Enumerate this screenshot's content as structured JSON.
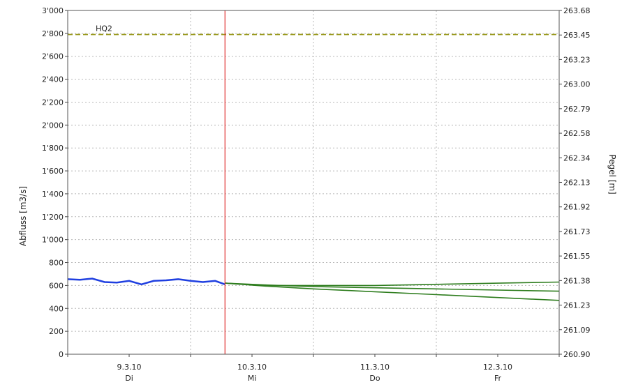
{
  "chart_data": {
    "type": "line",
    "ylabel_left": "Abfluss [m3/s]",
    "ylabel_right": "Pegel [m]",
    "ylim_left": [
      0,
      3000
    ],
    "yticks_left": [
      "3'000",
      "2'800",
      "2'600",
      "2'400",
      "2'200",
      "2'000",
      "1'800",
      "1'600",
      "1'400",
      "1'200",
      "1'000",
      "800",
      "600",
      "400",
      "200",
      "0"
    ],
    "yticks_right": [
      "263.68",
      "263.45",
      "263.23",
      "263.00",
      "262.79",
      "262.58",
      "262.34",
      "262.13",
      "261.92",
      "261.73",
      "261.55",
      "261.38",
      "261.23",
      "261.09",
      "260.90"
    ],
    "xlim_days": [
      0,
      4
    ],
    "x_date_labels": [
      {
        "date": "9.3.10",
        "day": "Di",
        "x": 0.5
      },
      {
        "date": "10.3.10",
        "day": "Mi",
        "x": 1.5
      },
      {
        "date": "11.3.10",
        "day": "Do",
        "x": 2.5
      },
      {
        "date": "12.3.10",
        "day": "Fr",
        "x": 3.5
      }
    ],
    "now_line_x": 1.28,
    "hq": {
      "label": "HQ2",
      "value": 2790,
      "color": "#9a9a1e"
    },
    "grid": true,
    "series": [
      {
        "name": "",
        "color": "#1f3fe0",
        "points": [
          [
            0,
            655
          ],
          [
            0.1,
            650
          ],
          [
            0.2,
            660
          ],
          [
            0.3,
            630
          ],
          [
            0.4,
            625
          ],
          [
            0.5,
            640
          ],
          [
            0.6,
            610
          ],
          [
            0.7,
            640
          ],
          [
            0.8,
            645
          ],
          [
            0.9,
            655
          ],
          [
            1.0,
            640
          ],
          [
            1.1,
            630
          ],
          [
            1.2,
            640
          ],
          [
            1.28,
            610
          ]
        ]
      },
      {
        "name": "",
        "color": "#2e7d1e",
        "points": [
          [
            1.28,
            620
          ],
          [
            1.6,
            600
          ],
          [
            2.0,
            600
          ],
          [
            2.5,
            600
          ],
          [
            3.0,
            610
          ],
          [
            3.5,
            620
          ],
          [
            4.0,
            630
          ]
        ]
      },
      {
        "name": "",
        "color": "#2e7d1e",
        "points": [
          [
            1.28,
            620
          ],
          [
            1.6,
            605
          ],
          [
            2.0,
            590
          ],
          [
            2.5,
            580
          ],
          [
            3.0,
            570
          ],
          [
            3.5,
            560
          ],
          [
            4.0,
            550
          ]
        ]
      },
      {
        "name": "",
        "color": "#2e7d1e",
        "points": [
          [
            1.28,
            620
          ],
          [
            1.6,
            595
          ],
          [
            2.0,
            570
          ],
          [
            2.5,
            545
          ],
          [
            3.0,
            520
          ],
          [
            3.5,
            495
          ],
          [
            4.0,
            470
          ]
        ]
      }
    ]
  }
}
